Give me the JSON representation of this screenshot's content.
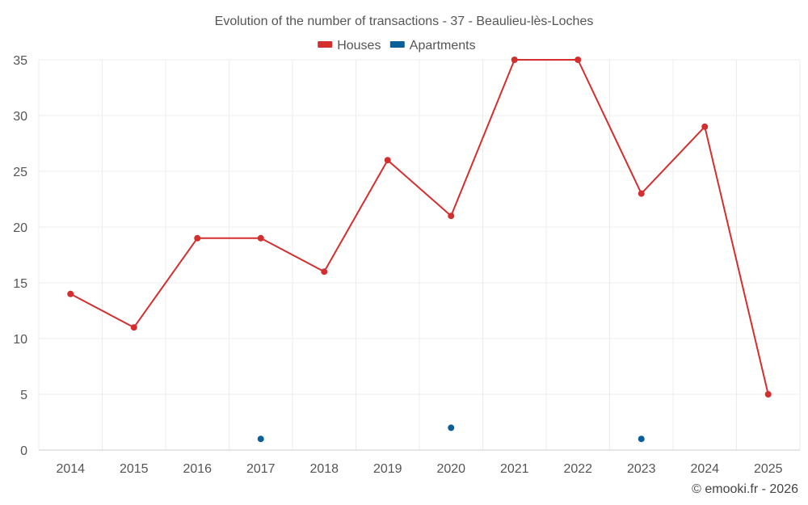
{
  "chart_data": {
    "type": "line",
    "title": "Evolution of the number of transactions - 37 - Beaulieu-lès-Loches",
    "categories": [
      "2014",
      "2015",
      "2016",
      "2017",
      "2018",
      "2019",
      "2020",
      "2021",
      "2022",
      "2023",
      "2024",
      "2025"
    ],
    "series": [
      {
        "name": "Houses",
        "color": "#d32f2f",
        "values": [
          14,
          11,
          19,
          19,
          16,
          26,
          21,
          35,
          35,
          23,
          29,
          5
        ]
      },
      {
        "name": "Apartments",
        "color": "#0a5f9a",
        "values": [
          null,
          null,
          null,
          1,
          null,
          null,
          2,
          null,
          null,
          1,
          null,
          null
        ]
      }
    ],
    "ylim": [
      0,
      35
    ],
    "yticks": [
      0,
      5,
      10,
      15,
      20,
      25,
      30,
      35
    ],
    "grid": true,
    "legend_position": "top-center",
    "xlabel": "",
    "ylabel": ""
  },
  "credit": "© emooki.fr - 2026"
}
